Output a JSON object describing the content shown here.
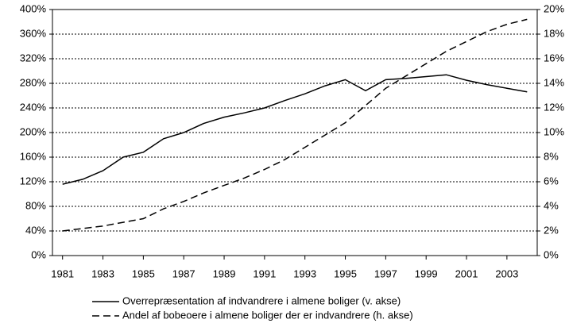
{
  "chart_data": {
    "type": "line",
    "x": [
      1981,
      1982,
      1983,
      1984,
      1985,
      1986,
      1987,
      1988,
      1989,
      1990,
      1991,
      1992,
      1993,
      1994,
      1995,
      1996,
      1997,
      1998,
      1999,
      2000,
      2001,
      2002,
      2003,
      2004
    ],
    "xlim": [
      1980.5,
      2004.5
    ],
    "xticks": [
      1981,
      1983,
      1985,
      1987,
      1989,
      1991,
      1993,
      1995,
      1997,
      1999,
      2001,
      2003
    ],
    "ylim": [
      0,
      400
    ],
    "yticks": [
      {
        "value": 0,
        "label": "0%"
      },
      {
        "value": 40,
        "label": "40%"
      },
      {
        "value": 80,
        "label": "80%"
      },
      {
        "value": 120,
        "label": "120%"
      },
      {
        "value": 160,
        "label": "160%"
      },
      {
        "value": 200,
        "label": "200%"
      },
      {
        "value": 240,
        "label": "240%"
      },
      {
        "value": 280,
        "label": "280%"
      },
      {
        "value": 320,
        "label": "320%"
      },
      {
        "value": 360,
        "label": "360%"
      },
      {
        "value": 400,
        "label": "400%"
      }
    ],
    "y2lim": [
      0,
      20
    ],
    "y2ticks": [
      {
        "value": 0,
        "label": "0%"
      },
      {
        "value": 2,
        "label": "2%"
      },
      {
        "value": 4,
        "label": "4%"
      },
      {
        "value": 6,
        "label": "6%"
      },
      {
        "value": 8,
        "label": "8%"
      },
      {
        "value": 10,
        "label": "10%"
      },
      {
        "value": 12,
        "label": "12%"
      },
      {
        "value": 14,
        "label": "14%"
      },
      {
        "value": 16,
        "label": "16%"
      },
      {
        "value": 18,
        "label": "18%"
      },
      {
        "value": 20,
        "label": "20%"
      }
    ],
    "grid": true,
    "series": [
      {
        "name": "Overrepræsentation af indvandrere i almene boliger (v. akse)",
        "color": "#000000",
        "style": "solid",
        "values": [
          116,
          124,
          138,
          160,
          168,
          190,
          200,
          215,
          225,
          232,
          240,
          252,
          263,
          276,
          286,
          268,
          286,
          288,
          291,
          294,
          285,
          278,
          272,
          266
        ]
      },
      {
        "name": "Andel af bobeoere i almene boliger der er indvandrere (h. akse)",
        "color": "#000000",
        "style": "dashed",
        "axis": "y2",
        "values": [
          2.0,
          2.2,
          2.4,
          2.7,
          3.0,
          3.8,
          4.4,
          5.1,
          5.7,
          6.3,
          7.0,
          7.8,
          8.8,
          9.8,
          10.8,
          12.2,
          13.6,
          14.6,
          15.6,
          16.6,
          17.4,
          18.2,
          18.8,
          19.2
        ]
      }
    ]
  }
}
